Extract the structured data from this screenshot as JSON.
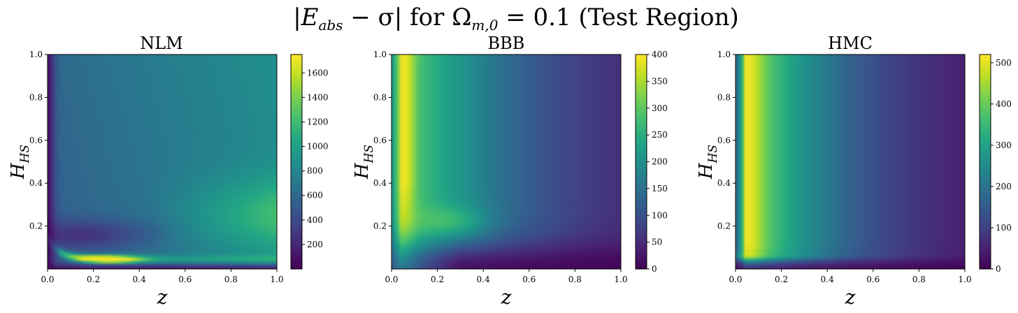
{
  "figure": {
    "title": "|E_abs − σ| for Ω_m,0 = 0.1 (Test Region)",
    "title_parts": {
      "bar": "|",
      "var": "E",
      "sub": "abs",
      "minus": " − σ",
      "bar2": "|",
      "for": " for ",
      "omega": "Ω",
      "omega_sub": "m,0",
      "value": " = 0.1 ",
      "region": "(Test Region)"
    }
  },
  "colormap": "viridis",
  "colors": {
    "text": "#000000",
    "frame": "#000000"
  },
  "chart_data": [
    {
      "type": "heatmap",
      "title": "NLM",
      "xlabel": "z",
      "ylabel_main": "H",
      "ylabel_sub": "HS",
      "xlim": [
        0.0,
        1.0
      ],
      "ylim": [
        0.0,
        1.0
      ],
      "xticks": [
        "0.0",
        "0.2",
        "0.4",
        "0.6",
        "0.8",
        "1.0"
      ],
      "yticks": [
        "0.2",
        "0.4",
        "0.6",
        "0.8",
        "1.0"
      ],
      "colorbar": {
        "min": 0,
        "max": 1750,
        "ticks": [
          200,
          400,
          600,
          800,
          1000,
          1200,
          1400,
          1600
        ]
      },
      "features": "low values near z=0 and along a valley at H≈0.15; maximum ≈1700 in a narrow ridge at H≈0.04, z≈0.2–0.35; values rise toward ≈1000 at large z, H≈0.2–0.3; background ≈500–700"
    },
    {
      "type": "heatmap",
      "title": "BBB",
      "xlabel": "z",
      "ylabel_main": "H",
      "ylabel_sub": "HS",
      "xlim": [
        0.0,
        1.0
      ],
      "ylim": [
        0.0,
        1.0
      ],
      "xticks": [
        "0.0",
        "0.2",
        "0.4",
        "0.6",
        "0.8",
        "1.0"
      ],
      "yticks": [
        "0.2",
        "0.4",
        "0.6",
        "0.8",
        "1.0"
      ],
      "colorbar": {
        "min": 0,
        "max": 400,
        "ticks": [
          0,
          50,
          100,
          150,
          200,
          250,
          300,
          350,
          400
        ]
      },
      "features": "maximum ≈400 near z≈0.05 at high H; broad plateau ≈280–320 for z<0.4; local peak ≈370 near z≈0.25, H≈0.22; decays to ≈30 at z=1.0; low near H≈0"
    },
    {
      "type": "heatmap",
      "title": "HMC",
      "xlabel": "z",
      "ylabel_main": "H",
      "ylabel_sub": "HS",
      "xlim": [
        0.0,
        1.0
      ],
      "ylim": [
        0.0,
        1.0
      ],
      "xticks": [
        "0.0",
        "0.2",
        "0.4",
        "0.6",
        "0.8",
        "1.0"
      ],
      "yticks": [
        "0.2",
        "0.4",
        "0.6",
        "0.8",
        "1.0"
      ],
      "colorbar": {
        "min": 0,
        "max": 520,
        "ticks": [
          0,
          100,
          200,
          300,
          400,
          500
        ]
      },
      "features": "maximum ≈520 near z≈0.05–0.1 for all H>0.1; decays smoothly in z to ≈50 at z=1.0; low band near H≈0 with bright rim at H≈0.05"
    }
  ]
}
